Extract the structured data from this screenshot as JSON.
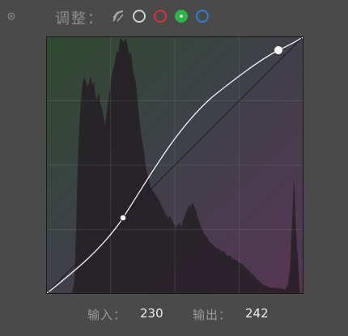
{
  "toolbar": {
    "label": "调整：",
    "target_icon": "target-adjust-icon",
    "channels": [
      {
        "name": "luminance-channel",
        "icon": "luminance-curve-icon",
        "color": "#a8a8a8"
      },
      {
        "name": "rgb-channel",
        "icon": "white-circle-icon",
        "color": "#cfcfcf"
      },
      {
        "name": "red-channel",
        "icon": "red-circle-icon",
        "color": "#d8343e"
      },
      {
        "name": "green-channel",
        "icon": "green-circle-icon",
        "color": "#2fb34a",
        "selected": true
      },
      {
        "name": "blue-channel",
        "icon": "blue-circle-icon",
        "color": "#2f7fd8"
      }
    ]
  },
  "curve": {
    "channel": "green",
    "points": [
      [
        0,
        0
      ],
      [
        75,
        74
      ],
      [
        230,
        242
      ],
      [
        255,
        255
      ]
    ],
    "selected_point_index": 2
  },
  "readout": {
    "input_label": "输入：",
    "input_value": "230",
    "output_label": "输出：",
    "output_value": "242"
  }
}
